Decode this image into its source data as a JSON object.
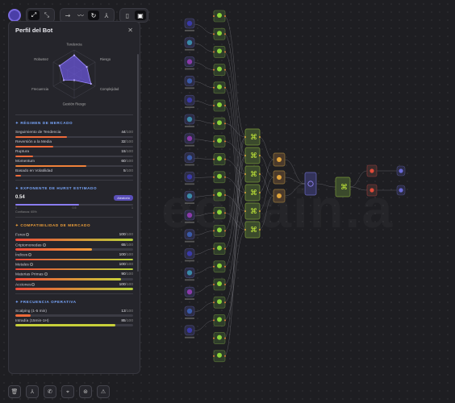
{
  "toolbar": {
    "icons": [
      "app-logo-icon",
      "select-tool-icon",
      "expand-icon",
      "connect-icon",
      "trend-icon",
      "redo-icon",
      "graph-icon",
      "layout-icon",
      "panel-icon"
    ]
  },
  "panel": {
    "title": "Perfil del Bot",
    "radar": {
      "labels": [
        "Tendencia",
        "Riesgo",
        "Complejidad",
        "Gestión Riesgo",
        "Frecuencia",
        "Robustez"
      ],
      "values": [
        0.78,
        0.6,
        0.8,
        0.25,
        0.5,
        0.7
      ]
    },
    "regimen": {
      "title": "RÉGIMEN DE MERCADO",
      "items": [
        {
          "label": "Seguimiento de Tendencia",
          "value": "44",
          "max": "/100",
          "pct": 44,
          "color": "#f06a3a"
        },
        {
          "label": "Reversión a la Media",
          "value": "32",
          "max": "/100",
          "pct": 32,
          "color": "#f06a3a"
        },
        {
          "label": "Ruptura",
          "value": "15",
          "max": "/100",
          "pct": 15,
          "color": "#f06a3a"
        },
        {
          "label": "Momentum",
          "value": "60",
          "max": "/100",
          "pct": 60,
          "color": "#f0823a"
        },
        {
          "label": "Basado en Volatilidad",
          "value": "5",
          "max": "/100",
          "pct": 5,
          "color": "#f06a3a"
        }
      ]
    },
    "hurst": {
      "title": "EXPONENTE DE HURST ESTIMADO",
      "value": "0.54",
      "badge": "Aleatorio",
      "ticks": [
        "0",
        "0.5",
        "1"
      ],
      "confidence": "Confianza: 65%",
      "fraction": 0.54
    },
    "compat": {
      "title": "COMPATIBILIDAD DE MERCADO",
      "items": [
        {
          "label": "Forex",
          "value": "100",
          "max": "/100",
          "pct": 100,
          "color": "#b8d43a"
        },
        {
          "label": "Criptomonedas",
          "value": "65",
          "max": "/100",
          "pct": 65,
          "color": "#f2a23a"
        },
        {
          "label": "Índices",
          "value": "100",
          "max": "/100",
          "pct": 100,
          "color": "#b8d43a"
        },
        {
          "label": "Metales",
          "value": "100",
          "max": "/100",
          "pct": 100,
          "color": "#b8d43a"
        },
        {
          "label": "Materias Primas",
          "value": "90",
          "max": "/100",
          "pct": 90,
          "color": "#c8d03a"
        },
        {
          "label": "Acciones",
          "value": "100",
          "max": "/100",
          "pct": 100,
          "color": "#b8d43a"
        }
      ]
    },
    "freq": {
      "title": "FRECUENCIA OPERATIVA",
      "items": [
        {
          "label": "Scalping (1-5 min)",
          "value": "13",
          "max": "/100",
          "pct": 13,
          "color": "#f06a3a"
        },
        {
          "label": "Intradía (15min-1H)",
          "value": "85",
          "max": "/100",
          "pct": 85,
          "color": "#c8d03a"
        }
      ]
    }
  },
  "bottom_toolbar": {
    "icons": [
      "trash-icon",
      "graph-nodes-icon",
      "phone-icon",
      "pin-icon",
      "target-icon",
      "warning-icon"
    ]
  },
  "watermark": "ecuain.a"
}
